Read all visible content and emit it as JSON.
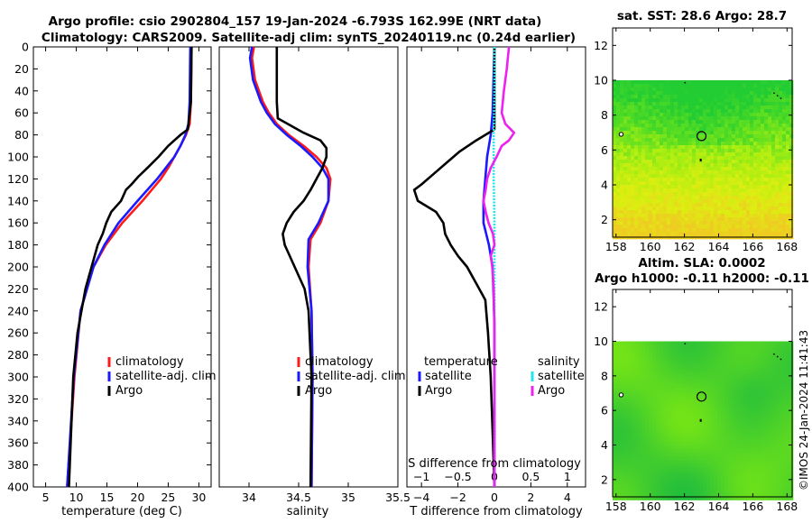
{
  "header": {
    "title_line1": "Argo profile: csio 2902804_157 19-Jan-2024 -6.793S 162.99E (NRT data)",
    "title_line2": "Climatology: CARS2009. Satellite-adj clim: synTS_20240119.nc (0.24d earlier)"
  },
  "timestamp": "©IMOS 24-Jan-2024 11:41:43",
  "colors": {
    "climatology": "#ff1a1a",
    "satellite": "#1a1aff",
    "argo": "#000000",
    "salinity_satellite": "#22e5ee",
    "salinity_argo": "#ee22ee",
    "land_white": "#ffffff"
  },
  "chart_data": [
    {
      "type": "line",
      "panel": "temperature",
      "xlabel": "temperature (deg C)",
      "ylabel": "",
      "xlim": [
        3,
        32
      ],
      "ylim": [
        400,
        0
      ],
      "xticks": [
        5,
        10,
        15,
        20,
        25,
        30
      ],
      "yticks": [
        0,
        20,
        40,
        60,
        80,
        100,
        120,
        140,
        160,
        180,
        200,
        220,
        240,
        260,
        280,
        300,
        320,
        340,
        360,
        380,
        400
      ],
      "legend": [
        "climatology",
        "satellite-adj. clim",
        "Argo"
      ],
      "series": [
        {
          "name": "climatology",
          "depth": [
            0,
            50,
            70,
            80,
            90,
            100,
            110,
            120,
            140,
            160,
            180,
            200,
            240,
            300,
            400
          ],
          "values": [
            28.8,
            28.7,
            28.5,
            27.9,
            27.0,
            26.0,
            25.0,
            23.8,
            20.8,
            17.5,
            14.8,
            12.8,
            10.7,
            9.7,
            8.5
          ]
        },
        {
          "name": "satellite-adj. clim",
          "depth": [
            0,
            50,
            70,
            80,
            90,
            100,
            110,
            120,
            140,
            160,
            180,
            200,
            240,
            300,
            400
          ],
          "values": [
            28.6,
            28.5,
            28.3,
            27.8,
            27.0,
            26.0,
            24.6,
            23.2,
            20.0,
            16.9,
            14.6,
            12.8,
            10.7,
            9.6,
            8.5
          ]
        },
        {
          "name": "Argo",
          "depth": [
            0,
            50,
            75,
            80,
            90,
            100,
            110,
            118,
            125,
            130,
            140,
            150,
            160,
            170,
            180,
            200,
            220,
            260,
            300,
            400
          ],
          "values": [
            28.8,
            28.7,
            28.2,
            27.0,
            25.0,
            23.4,
            21.6,
            20.1,
            19.0,
            18.1,
            17.3,
            15.7,
            14.9,
            14.3,
            13.5,
            12.5,
            11.5,
            10.2,
            9.5,
            8.8
          ]
        }
      ]
    },
    {
      "type": "line",
      "panel": "salinity",
      "xlabel": "salinity",
      "ylabel": "",
      "xlim": [
        33.7,
        35.5
      ],
      "ylim": [
        400,
        0
      ],
      "xticks": [
        34,
        34.5,
        35,
        35.5
      ],
      "legend": [
        "climatology",
        "satellite-adj. clim",
        "Argo"
      ],
      "series": [
        {
          "name": "climatology",
          "depth": [
            0,
            10,
            30,
            50,
            60,
            70,
            80,
            90,
            100,
            110,
            120,
            140,
            160,
            175,
            200,
            240,
            300,
            400
          ],
          "values": [
            34.05,
            34.03,
            34.06,
            34.14,
            34.2,
            34.28,
            34.4,
            34.55,
            34.68,
            34.78,
            34.82,
            34.8,
            34.72,
            34.62,
            34.6,
            34.63,
            34.64,
            34.63
          ]
        },
        {
          "name": "satellite-adj. clim",
          "depth": [
            0,
            10,
            30,
            50,
            60,
            70,
            80,
            90,
            100,
            110,
            120,
            140,
            160,
            175,
            200,
            240,
            300,
            400
          ],
          "values": [
            34.03,
            34.01,
            34.04,
            34.12,
            34.18,
            34.26,
            34.38,
            34.52,
            34.64,
            34.74,
            34.8,
            34.8,
            34.7,
            34.6,
            34.59,
            34.63,
            34.64,
            34.63
          ]
        },
        {
          "name": "Argo",
          "depth": [
            0,
            50,
            65,
            78,
            85,
            92,
            100,
            110,
            120,
            130,
            140,
            150,
            160,
            170,
            180,
            200,
            220,
            240,
            300,
            400
          ],
          "values": [
            34.28,
            34.28,
            34.29,
            34.55,
            34.72,
            34.78,
            34.78,
            34.74,
            34.68,
            34.62,
            34.55,
            34.45,
            34.38,
            34.34,
            34.36,
            34.46,
            34.56,
            34.6,
            34.63,
            34.62
          ]
        }
      ]
    },
    {
      "type": "line",
      "panel": "difference",
      "xlabel": "T difference from climatology",
      "xlabel_top": "S difference from climatology",
      "xlim": [
        -4.8,
        5
      ],
      "xticks": [
        -4,
        -2,
        0,
        2,
        4
      ],
      "xlim_top": [
        -1.2,
        1.25
      ],
      "xticks_top": [
        -1,
        -0.5,
        0,
        0.5,
        1
      ],
      "ylim": [
        400,
        0
      ],
      "legend": {
        "temperature": [
          "satellite",
          "Argo"
        ],
        "salinity": [
          "satellite",
          "Argo"
        ]
      },
      "legend_titles": [
        "temperature",
        "salinity"
      ],
      "series": [
        {
          "name": "temperature satellite",
          "depth": [
            0,
            60,
            80,
            100,
            120,
            140,
            160,
            180,
            200,
            250,
            300,
            400
          ],
          "values": [
            0.0,
            -0.1,
            -0.2,
            -0.4,
            -0.5,
            -0.6,
            -0.6,
            -0.3,
            -0.1,
            0.0,
            0.0,
            0.0
          ]
        },
        {
          "name": "temperature Argo",
          "depth": [
            0,
            60,
            75,
            85,
            95,
            105,
            115,
            125,
            130,
            140,
            150,
            160,
            170,
            180,
            190,
            200,
            215,
            230,
            260,
            300,
            350,
            400
          ],
          "values": [
            0.0,
            0.0,
            0.0,
            -1.0,
            -1.9,
            -2.6,
            -3.3,
            -4.0,
            -4.4,
            -4.2,
            -3.2,
            -2.8,
            -2.7,
            -2.4,
            -2.0,
            -1.5,
            -1.0,
            -0.5,
            -0.35,
            -0.2,
            -0.1,
            0.0
          ]
        },
        {
          "name": "salinity satellite",
          "depth": [
            0,
            40,
            80,
            120,
            160,
            200,
            240,
            300,
            400
          ],
          "values": [
            0.0,
            0.0,
            -0.01,
            -0.01,
            0.0,
            0.0,
            0.0,
            0.0,
            0.0
          ]
        },
        {
          "name": "salinity Argo",
          "depth": [
            0,
            20,
            40,
            60,
            70,
            78,
            85,
            90,
            100,
            110,
            120,
            130,
            140,
            150,
            160,
            170,
            180,
            190,
            200,
            220,
            260,
            300,
            400
          ],
          "values": [
            0.2,
            0.17,
            0.13,
            0.1,
            0.15,
            0.27,
            0.2,
            0.1,
            0.03,
            -0.05,
            -0.1,
            -0.12,
            -0.15,
            -0.12,
            -0.08,
            -0.02,
            0.0,
            -0.05,
            -0.03,
            -0.01,
            0.0,
            0.0,
            0.0
          ]
        }
      ]
    },
    {
      "type": "heatmap",
      "panel": "sst_map",
      "title": "sat. SST: 28.6 Argo: 28.7",
      "xlim": [
        157.8,
        168.3
      ],
      "ylim": [
        1,
        13
      ],
      "xticks": [
        158,
        160,
        162,
        164,
        166,
        168
      ],
      "yticks": [
        2,
        4,
        6,
        8,
        10,
        12
      ],
      "data_extent_lat_max": 10,
      "profile_marker": {
        "lon": 163.0,
        "lat": 6.8
      },
      "color_gradient_north_to_south": [
        "#22cc33",
        "#55dd22",
        "#aaee11",
        "#ddee11",
        "#eecc22"
      ]
    },
    {
      "type": "heatmap",
      "panel": "sla_map",
      "title_line1": "Altim. SLA: 0.0002",
      "title_line2": "Argo h1000: -0.11 h2000: -0.11",
      "xlim": [
        157.8,
        168.3
      ],
      "ylim": [
        1,
        13
      ],
      "xticks": [
        158,
        160,
        162,
        164,
        166,
        168
      ],
      "yticks": [
        2,
        4,
        6,
        8,
        10,
        12
      ],
      "data_extent_lat_max": 10,
      "profile_marker": {
        "lon": 163.0,
        "lat": 6.8
      }
    }
  ]
}
